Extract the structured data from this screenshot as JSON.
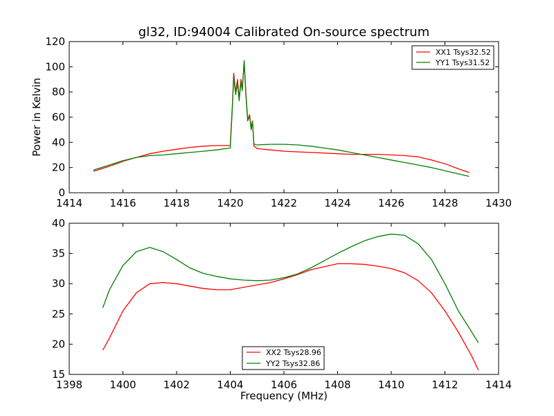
{
  "figure": {
    "title": "gl32, ID:94004 Calibrated On-source spectrum",
    "xlabel": "Frequency (MHz)"
  },
  "chart_data": [
    {
      "type": "line",
      "title": "gl32, ID:94004 Calibrated On-source spectrum",
      "xlabel": "",
      "ylabel": "Power in Kelvin",
      "xlim": [
        1414,
        1430
      ],
      "ylim": [
        0,
        120
      ],
      "xticks": [
        "1414",
        "1416",
        "1418",
        "1420",
        "1422",
        "1424",
        "1426",
        "1428",
        "1430"
      ],
      "yticks": [
        "0",
        "20",
        "40",
        "60",
        "80",
        "100",
        "120"
      ],
      "grid": false,
      "legend_position": "top-right",
      "series": [
        {
          "name": "XX1 Tsys32.52",
          "color": "#ff0000",
          "x": [
            1414.9,
            1415.5,
            1416.0,
            1416.5,
            1417.0,
            1417.5,
            1418.0,
            1418.5,
            1419.0,
            1419.5,
            1420.0,
            1420.08,
            1420.13,
            1420.2,
            1420.27,
            1420.33,
            1420.4,
            1420.45,
            1420.52,
            1420.58,
            1420.65,
            1420.72,
            1420.78,
            1420.83,
            1420.88,
            1420.95,
            1421.0,
            1421.5,
            1422.0,
            1423.0,
            1424.0,
            1424.5,
            1425.0,
            1425.5,
            1426.0,
            1426.5,
            1427.0,
            1427.5,
            1428.0,
            1428.5,
            1428.9
          ],
          "y": [
            17,
            21,
            25,
            28,
            31,
            33,
            34.5,
            36,
            37,
            37.5,
            37.5,
            70,
            95,
            80,
            90,
            75,
            90,
            83,
            104,
            80,
            58,
            62,
            52,
            57,
            37,
            36,
            35,
            34,
            33,
            32,
            31,
            30.5,
            30.5,
            30.5,
            30,
            29.5,
            28.5,
            26,
            23,
            19,
            16
          ]
        },
        {
          "name": "YY1 Tsys31.52",
          "color": "#008000",
          "x": [
            1414.9,
            1415.5,
            1416.0,
            1416.5,
            1417.0,
            1417.5,
            1418.0,
            1418.5,
            1419.0,
            1419.5,
            1420.0,
            1420.08,
            1420.13,
            1420.2,
            1420.27,
            1420.33,
            1420.4,
            1420.45,
            1420.52,
            1420.58,
            1420.65,
            1420.72,
            1420.78,
            1420.83,
            1420.88,
            1420.95,
            1421.0,
            1421.5,
            1422.0,
            1422.5,
            1423.0,
            1423.5,
            1424.0,
            1424.5,
            1425.0,
            1425.5,
            1426.0,
            1426.5,
            1427.0,
            1427.5,
            1428.0,
            1428.5,
            1428.9
          ],
          "y": [
            18,
            22,
            25.5,
            28,
            29.5,
            30,
            31,
            32,
            33,
            34,
            35.5,
            68,
            92,
            78,
            87,
            73,
            88,
            81,
            105,
            78,
            57,
            61,
            50,
            56,
            39,
            38,
            38,
            38.5,
            38.5,
            38,
            37,
            35.5,
            34,
            32,
            30,
            28,
            26,
            24,
            22,
            20,
            17.5,
            15,
            13
          ]
        }
      ]
    },
    {
      "type": "line",
      "title": "",
      "xlabel": "Frequency (MHz)",
      "ylabel": "",
      "xlim": [
        1398,
        1414
      ],
      "ylim": [
        15,
        40
      ],
      "xticks": [
        "1398",
        "1400",
        "1402",
        "1404",
        "1406",
        "1408",
        "1410",
        "1412",
        "1414"
      ],
      "yticks": [
        "15",
        "20",
        "25",
        "30",
        "35",
        "40"
      ],
      "grid": false,
      "legend_position": "bottom-center",
      "series": [
        {
          "name": "XX2 Tsys28.96",
          "color": "#ff0000",
          "x": [
            1399.25,
            1399.5,
            1400.0,
            1400.5,
            1401.0,
            1401.5,
            1402.0,
            1402.5,
            1403.0,
            1403.5,
            1404.0,
            1404.5,
            1405.0,
            1405.5,
            1406.0,
            1406.5,
            1407.0,
            1407.5,
            1408.0,
            1408.5,
            1409.0,
            1409.5,
            1410.0,
            1410.5,
            1411.0,
            1411.5,
            1412.0,
            1412.5,
            1413.0,
            1413.25
          ],
          "y": [
            19,
            21,
            25.5,
            28.5,
            30,
            30.2,
            30,
            29.6,
            29.2,
            29,
            29,
            29.4,
            29.8,
            30.2,
            30.8,
            31.5,
            32.3,
            32.8,
            33.3,
            33.3,
            33.2,
            32.9,
            32.5,
            31.8,
            30.5,
            28.5,
            25.5,
            22,
            18,
            15.7
          ]
        },
        {
          "name": "YY2 Tsys32.86",
          "color": "#008000",
          "x": [
            1399.25,
            1399.5,
            1400.0,
            1400.5,
            1401.0,
            1401.5,
            1402.0,
            1402.5,
            1403.0,
            1403.5,
            1404.0,
            1404.5,
            1405.0,
            1405.5,
            1406.0,
            1406.5,
            1407.0,
            1407.5,
            1408.0,
            1408.5,
            1409.0,
            1409.5,
            1410.0,
            1410.5,
            1411.0,
            1411.5,
            1412.0,
            1412.5,
            1413.0,
            1413.25
          ],
          "y": [
            26,
            29,
            33,
            35.3,
            36,
            35.3,
            34,
            32.6,
            31.7,
            31.2,
            30.8,
            30.6,
            30.5,
            30.6,
            31,
            31.6,
            32.6,
            33.8,
            35,
            36.1,
            37.1,
            37.8,
            38.2,
            38,
            36.6,
            34,
            30,
            25.5,
            22,
            20.2
          ]
        }
      ]
    }
  ]
}
